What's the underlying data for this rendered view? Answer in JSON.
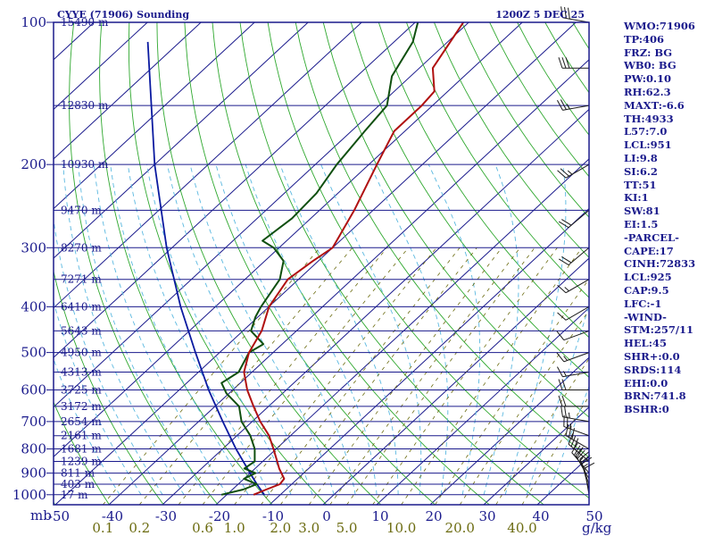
{
  "chart_data": {
    "type": "skew-t",
    "title_left": "CYYE (71906) Sounding",
    "title_right": "1200Z  5 DEC 25",
    "y_unit": "mb",
    "pressure_ticks": [
      100,
      200,
      300,
      400,
      500,
      600,
      700,
      800,
      900,
      1000
    ],
    "temp_ticks": [
      -50,
      -40,
      -30,
      -20,
      -10,
      0,
      10,
      20,
      30,
      40,
      50
    ],
    "height_labels": [
      {
        "p": 100,
        "label": "15490 m"
      },
      {
        "p": 150,
        "label": "12830 m"
      },
      {
        "p": 200,
        "label": "10930 m"
      },
      {
        "p": 250,
        "label": "9470 m"
      },
      {
        "p": 300,
        "label": "8270 m"
      },
      {
        "p": 350,
        "label": "7271 m"
      },
      {
        "p": 400,
        "label": "6410 m"
      },
      {
        "p": 450,
        "label": "5643 m"
      },
      {
        "p": 500,
        "label": "4950 m"
      },
      {
        "p": 550,
        "label": "4313 m"
      },
      {
        "p": 600,
        "label": "3725 m"
      },
      {
        "p": 650,
        "label": "3172 m"
      },
      {
        "p": 700,
        "label": "2654 m"
      },
      {
        "p": 750,
        "label": "2161 m"
      },
      {
        "p": 800,
        "label": "1681 m"
      },
      {
        "p": 850,
        "label": "1239 m"
      },
      {
        "p": 900,
        "label": "811 m"
      },
      {
        "p": 950,
        "label": "403 m"
      },
      {
        "p": 1000,
        "label": "17 m"
      }
    ],
    "mixing_ratio_labels": [
      "0.1",
      "0.2",
      "0.6",
      "1.0",
      "2.0",
      "3.0",
      "5.0",
      "10.0",
      "20.0",
      "40.0"
    ],
    "mixing_ratio_values": [
      0.1,
      0.2,
      0.6,
      1.0,
      2.0,
      3.0,
      5.0,
      10.0,
      20.0,
      40.0
    ],
    "mixing_ratio_unit": "g/kg",
    "temperature_profile": [
      {
        "p": 1000,
        "t": -15.0
      },
      {
        "p": 975,
        "t": -13.7
      },
      {
        "p": 950,
        "t": -12.2
      },
      {
        "p": 925,
        "t": -12.5
      },
      {
        "p": 880,
        "t": -15.5
      },
      {
        "p": 850,
        "t": -17.3
      },
      {
        "p": 800,
        "t": -20.5
      },
      {
        "p": 750,
        "t": -24.0
      },
      {
        "p": 700,
        "t": -28.5
      },
      {
        "p": 650,
        "t": -32.8
      },
      {
        "p": 600,
        "t": -37.3
      },
      {
        "p": 550,
        "t": -41.5
      },
      {
        "p": 500,
        "t": -44.5
      },
      {
        "p": 450,
        "t": -46.5
      },
      {
        "p": 400,
        "t": -50.0
      },
      {
        "p": 350,
        "t": -52.0
      },
      {
        "p": 320,
        "t": -51.0
      },
      {
        "p": 300,
        "t": -50.0
      },
      {
        "p": 250,
        "t": -53.5
      },
      {
        "p": 200,
        "t": -58.5
      },
      {
        "p": 170,
        "t": -62.0
      },
      {
        "p": 150,
        "t": -62.0
      },
      {
        "p": 140,
        "t": -62.5
      },
      {
        "p": 125,
        "t": -67.5
      },
      {
        "p": 100,
        "t": -71.0
      }
    ],
    "dewpoint_profile": [
      {
        "p": 1000,
        "t": -21.0
      },
      {
        "p": 975,
        "t": -18.0
      },
      {
        "p": 950,
        "t": -16.5
      },
      {
        "p": 925,
        "t": -20.0
      },
      {
        "p": 900,
        "t": -19.0
      },
      {
        "p": 880,
        "t": -22.0
      },
      {
        "p": 850,
        "t": -21.5
      },
      {
        "p": 800,
        "t": -24.0
      },
      {
        "p": 750,
        "t": -27.5
      },
      {
        "p": 700,
        "t": -32.0
      },
      {
        "p": 650,
        "t": -35.5
      },
      {
        "p": 610,
        "t": -40.5
      },
      {
        "p": 580,
        "t": -43.5
      },
      {
        "p": 550,
        "t": -42.5
      },
      {
        "p": 500,
        "t": -44.5
      },
      {
        "p": 480,
        "t": -43.5
      },
      {
        "p": 450,
        "t": -48.5
      },
      {
        "p": 420,
        "t": -50.5
      },
      {
        "p": 400,
        "t": -51.5
      },
      {
        "p": 350,
        "t": -53.5
      },
      {
        "p": 320,
        "t": -56.5
      },
      {
        "p": 300,
        "t": -61.0
      },
      {
        "p": 290,
        "t": -64.5
      },
      {
        "p": 260,
        "t": -63.5
      },
      {
        "p": 230,
        "t": -64.0
      },
      {
        "p": 200,
        "t": -66.0
      },
      {
        "p": 170,
        "t": -67.5
      },
      {
        "p": 150,
        "t": -68.5
      },
      {
        "p": 130,
        "t": -73.5
      },
      {
        "p": 110,
        "t": -76.5
      },
      {
        "p": 100,
        "t": -79.5
      }
    ],
    "parcel_profile": [
      {
        "p": 1000,
        "t": -13.0
      },
      {
        "p": 950,
        "t": -16.5
      },
      {
        "p": 900,
        "t": -20.0
      },
      {
        "p": 800,
        "t": -27.5
      },
      {
        "p": 700,
        "t": -35.5
      },
      {
        "p": 600,
        "t": -44.5
      },
      {
        "p": 500,
        "t": -54.5
      },
      {
        "p": 400,
        "t": -66.5
      },
      {
        "p": 300,
        "t": -81.0
      },
      {
        "p": 200,
        "t": -100.0
      },
      {
        "p": 110,
        "t": -126.0
      }
    ],
    "wind_barbs": [
      {
        "p": 1000,
        "dir": 350,
        "spd": 10
      },
      {
        "p": 975,
        "dir": 345,
        "spd": 15
      },
      {
        "p": 950,
        "dir": 340,
        "spd": 20
      },
      {
        "p": 925,
        "dir": 330,
        "spd": 25
      },
      {
        "p": 900,
        "dir": 320,
        "spd": 30
      },
      {
        "p": 850,
        "dir": 310,
        "spd": 30
      },
      {
        "p": 800,
        "dir": 300,
        "spd": 30
      },
      {
        "p": 750,
        "dir": 290,
        "spd": 25
      },
      {
        "p": 700,
        "dir": 280,
        "spd": 25
      },
      {
        "p": 650,
        "dir": 270,
        "spd": 20
      },
      {
        "p": 600,
        "dir": 270,
        "spd": 20
      },
      {
        "p": 550,
        "dir": 260,
        "spd": 15
      },
      {
        "p": 500,
        "dir": 250,
        "spd": 15
      },
      {
        "p": 450,
        "dir": 250,
        "spd": 10
      },
      {
        "p": 400,
        "dir": 240,
        "spd": 10
      },
      {
        "p": 350,
        "dir": 240,
        "spd": 15
      },
      {
        "p": 300,
        "dir": 230,
        "spd": 20
      },
      {
        "p": 250,
        "dir": 230,
        "spd": 20
      },
      {
        "p": 200,
        "dir": 240,
        "spd": 25
      },
      {
        "p": 150,
        "dir": 260,
        "spd": 25
      },
      {
        "p": 125,
        "dir": 270,
        "spd": 30
      },
      {
        "p": 100,
        "dir": 280,
        "spd": 30
      }
    ],
    "colors": {
      "frame": "#1a1a8c",
      "isobar": "#1a1a8c",
      "isotherm": "#1a1a8c",
      "dry_adiabat": "#2fa82f",
      "moist_adiabat": "#5ab8e0",
      "mixing_ratio": "#6b6b10",
      "temperature": "#b01010",
      "dewpoint": "#0f4f0f",
      "parcel": "#0a1aa0",
      "wind": "#1a1a1a"
    }
  },
  "indices": [
    "WMO:71906",
    "TP:406",
    "FRZ: BG",
    "WB0: BG",
    "PW:0.10",
    "RH:62.3",
    "MAXT:-6.6",
    "TH:4933",
    "L57:7.0",
    "LCL:951",
    "LI:9.8",
    "SI:6.2",
    "TT:51",
    "KI:1",
    "SW:81",
    "EI:1.5",
    "-PARCEL-",
    "CAPE:17",
    "CINH:72833",
    "LCL:925",
    "CAP:9.5",
    "LFC:-1",
    "-WIND-",
    "STM:257/11",
    "HEL:45",
    "SHR+:0.0",
    "SRDS:114",
    "EHI:0.0",
    "BRN:741.8",
    "BSHR:0"
  ]
}
